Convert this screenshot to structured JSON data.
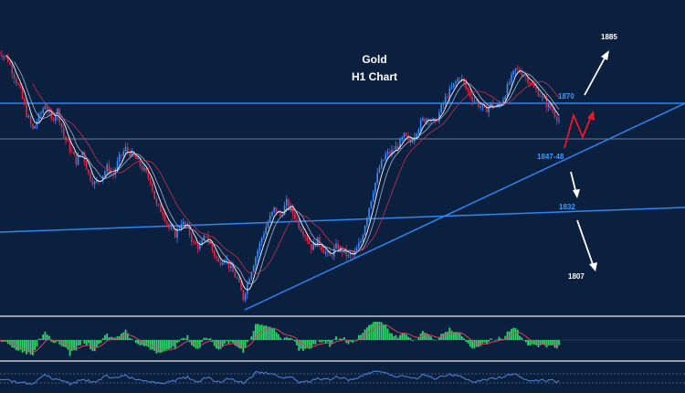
{
  "title": {
    "line1": "Gold",
    "line2": "H1 Chart"
  },
  "levels": {
    "resistance": "1870",
    "support_zone": "1847-48",
    "mid_support": "1832",
    "upside_target": "1885",
    "downside_target": "1807"
  },
  "colors": {
    "background": "#0b1f3f",
    "bull_candle": "#3d8cff",
    "bear_candle": "#e0294a",
    "trendline": "#2f86f0",
    "level_label": "#3c9bff",
    "arrow_white": "#ffffff",
    "arrow_red": "#e8182a",
    "macd_histogram": "#2fd66a",
    "macd_signal": "#d9455f",
    "rsi_line": "#4f86d8"
  },
  "chart_data": {
    "type": "candlestick",
    "instrument": "Gold",
    "timeframe": "H1",
    "y_range": [
      1795,
      1890
    ],
    "series": [
      {
        "name": "close",
        "values": [
          1876,
          1874,
          1869,
          1864,
          1857,
          1852,
          1856,
          1860,
          1855,
          1858,
          1850,
          1846,
          1842,
          1845,
          1838,
          1835,
          1837,
          1840,
          1838,
          1843,
          1846,
          1844,
          1842,
          1839,
          1836,
          1828,
          1826,
          1821,
          1819,
          1823,
          1821,
          1816,
          1815,
          1819,
          1814,
          1810,
          1812,
          1808,
          1805,
          1799,
          1806,
          1812,
          1818,
          1823,
          1827,
          1825,
          1829,
          1826,
          1822,
          1819,
          1815,
          1817,
          1814,
          1812,
          1815,
          1814,
          1812,
          1813,
          1817,
          1825,
          1833,
          1840,
          1844,
          1845,
          1847,
          1850,
          1848,
          1852,
          1855,
          1856,
          1854,
          1859,
          1863,
          1866,
          1869,
          1865,
          1862,
          1860,
          1858,
          1860,
          1859,
          1862,
          1867,
          1871,
          1870,
          1868,
          1865,
          1863,
          1860,
          1858,
          1855
        ]
      }
    ],
    "levels": [
      1870,
      1847.5,
      1832,
      1885,
      1807
    ]
  }
}
